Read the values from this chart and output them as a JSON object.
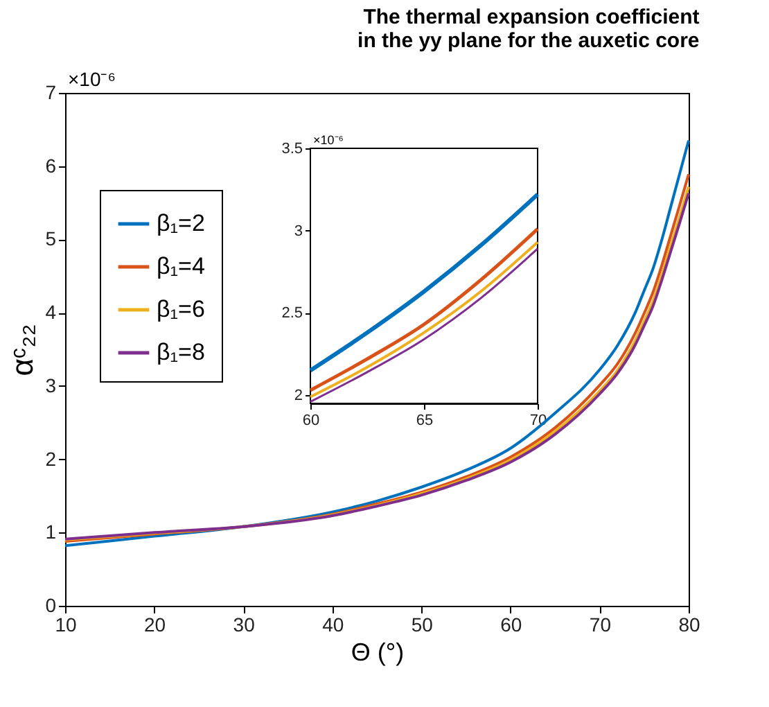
{
  "chart_data": [
    {
      "type": "line",
      "title": "The thermal expansion coefficient in the yy plane for the auxetic core",
      "xlabel": "Θ (°)",
      "ylabel": "αᶜ₂₂",
      "annotations": [
        "×10⁻⁶"
      ],
      "x": [
        10,
        20,
        30,
        40,
        45,
        50,
        55,
        60,
        65,
        70,
        72,
        74,
        75,
        76,
        77,
        78,
        79,
        80
      ],
      "series": [
        {
          "name": "β₁=2",
          "color": "#0072bd",
          "values": [
            0.82,
            0.95,
            1.08,
            1.28,
            1.43,
            1.62,
            1.85,
            2.15,
            2.63,
            3.22,
            3.55,
            4.0,
            4.3,
            4.6,
            5.0,
            5.45,
            5.9,
            6.35
          ]
        },
        {
          "name": "β₁=4",
          "color": "#d95319",
          "values": [
            0.88,
            0.98,
            1.08,
            1.25,
            1.39,
            1.55,
            1.76,
            2.03,
            2.43,
            3.01,
            3.3,
            3.72,
            3.99,
            4.28,
            4.65,
            5.06,
            5.47,
            5.89
          ]
        },
        {
          "name": "β₁=6",
          "color": "#edb120",
          "values": [
            0.9,
            0.99,
            1.08,
            1.24,
            1.37,
            1.53,
            1.73,
            1.99,
            2.38,
            2.93,
            3.21,
            3.62,
            3.88,
            4.16,
            4.52,
            4.92,
            5.31,
            5.72
          ]
        },
        {
          "name": "β₁=8",
          "color": "#7e2f8e",
          "values": [
            0.91,
            1.0,
            1.08,
            1.23,
            1.36,
            1.51,
            1.71,
            1.96,
            2.34,
            2.89,
            3.17,
            3.56,
            3.82,
            4.09,
            4.45,
            4.84,
            5.23,
            5.63
          ]
        }
      ],
      "xlim": [
        10,
        80
      ],
      "xticks": [
        10,
        20,
        30,
        40,
        50,
        60,
        70,
        80
      ],
      "ylim": [
        0,
        7
      ],
      "yticks": [
        0,
        1,
        2,
        3,
        4,
        5,
        6,
        7
      ],
      "grid": false,
      "legend": "top left",
      "line_style": "solid"
    },
    {
      "type": "line",
      "annotations": [
        "×10⁻⁶"
      ],
      "x": [
        60,
        62.5,
        65,
        67.5,
        70
      ],
      "series": [
        {
          "color": "#0072bd",
          "values": [
            2.15,
            2.38,
            2.63,
            2.91,
            3.22
          ]
        },
        {
          "color": "#d95319",
          "values": [
            2.03,
            2.22,
            2.43,
            2.7,
            3.01
          ]
        },
        {
          "color": "#edb120",
          "values": [
            1.99,
            2.17,
            2.38,
            2.63,
            2.93
          ]
        },
        {
          "color": "#7e2f8e",
          "values": [
            1.96,
            2.14,
            2.34,
            2.59,
            2.89
          ]
        }
      ],
      "xlim": [
        60,
        70
      ],
      "xticks": [
        60,
        65,
        70
      ],
      "ylim": [
        1.95,
        3.5
      ],
      "yticks": [
        2,
        2.5,
        3,
        3.5
      ],
      "grid": false,
      "line_style": "solid"
    }
  ]
}
